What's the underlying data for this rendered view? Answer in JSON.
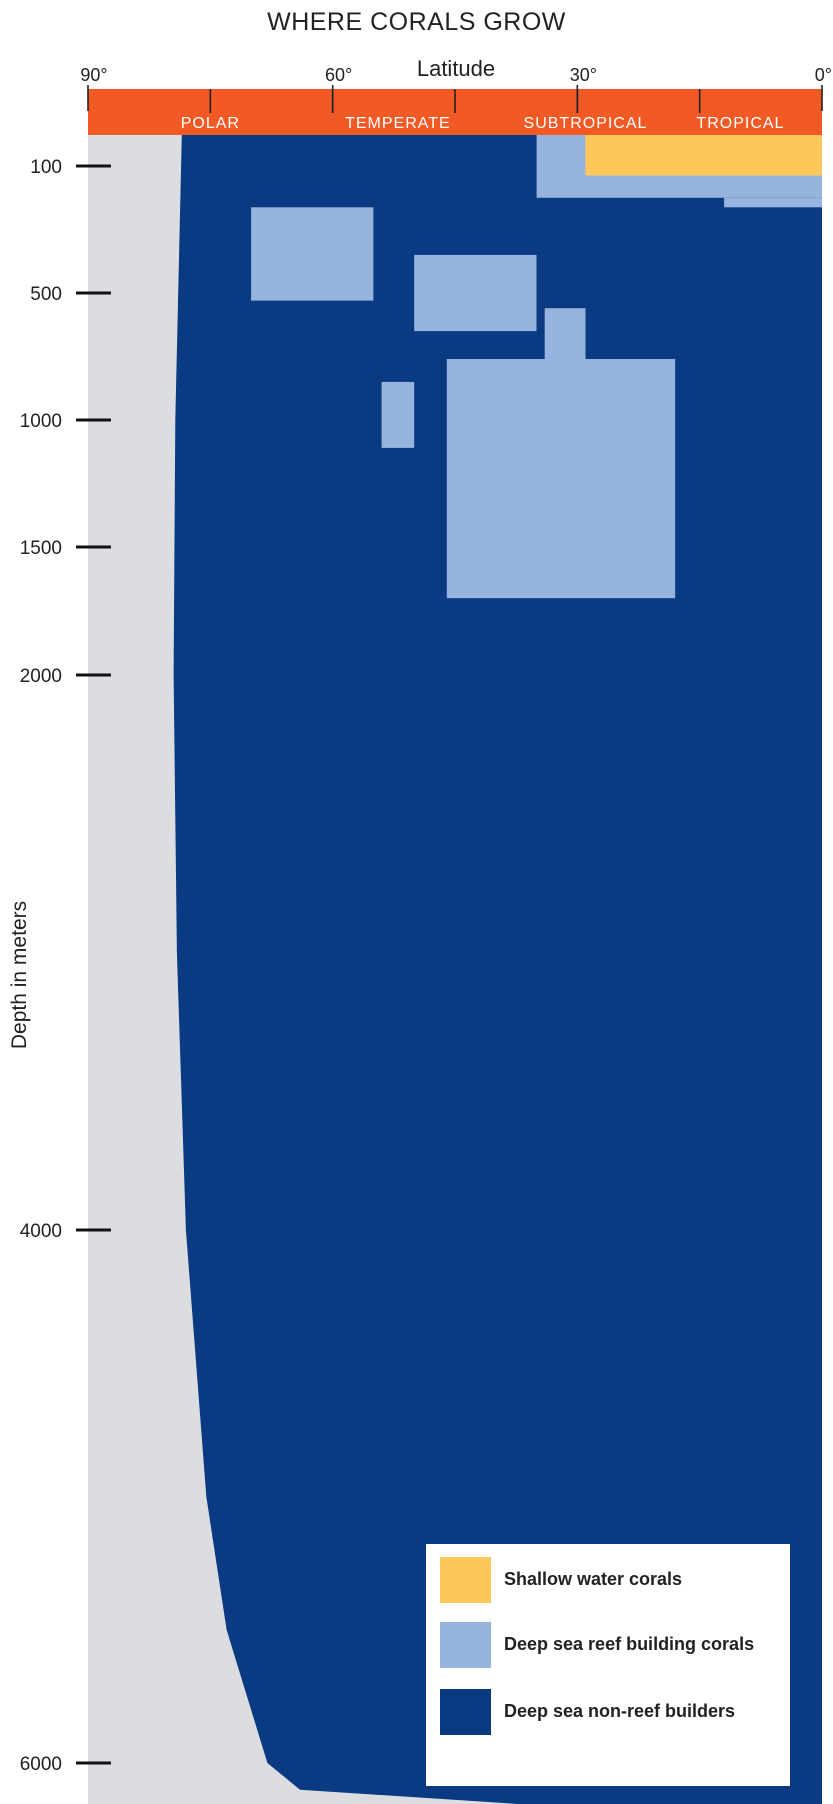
{
  "chart_data": {
    "type": "area",
    "title": "WHERE CORALS GROW",
    "xlabel": "Latitude",
    "ylabel": "Depth in meters",
    "x_ticks": [
      {
        "value": 90,
        "label": "90°"
      },
      {
        "value": 60,
        "label": "60°"
      },
      {
        "value": 30,
        "label": "30°"
      },
      {
        "value": 0,
        "label": "0°"
      }
    ],
    "y_ticks": [
      {
        "value": 100,
        "label": "100"
      },
      {
        "value": 500,
        "label": "500"
      },
      {
        "value": 1000,
        "label": "1000"
      },
      {
        "value": 1500,
        "label": "1500"
      },
      {
        "value": 2000,
        "label": "2000"
      },
      {
        "value": 4000,
        "label": "4000"
      },
      {
        "value": 6000,
        "label": "6000"
      }
    ],
    "zones": [
      {
        "label": "POLAR",
        "lat_from": 90,
        "lat_to": 60
      },
      {
        "label": "TEMPERATE",
        "lat_from": 60,
        "lat_to": 45
      },
      {
        "label": "SUBTROPICAL",
        "lat_from": 45,
        "lat_to": 15
      },
      {
        "label": "TROPICAL",
        "lat_from": 15,
        "lat_to": 0
      }
    ],
    "series": [
      {
        "name": "Shallow water corals",
        "color": "#fdc75a",
        "regions": [
          {
            "lat_from": 29,
            "lat_to": 0,
            "depth_from": 0,
            "depth_to": 130
          }
        ]
      },
      {
        "name": "Deep sea reef building corals",
        "color": "#96b4de",
        "regions": [
          {
            "lat_from": 35,
            "lat_to": 0,
            "depth_from": 0,
            "depth_to": 200
          },
          {
            "lat_from": 12,
            "lat_to": 0,
            "depth_from": 200,
            "depth_to": 230
          },
          {
            "lat_from": 70,
            "lat_to": 55,
            "depth_from": 230,
            "depth_to": 530
          },
          {
            "lat_from": 50,
            "lat_to": 35,
            "depth_from": 380,
            "depth_to": 650
          },
          {
            "lat_from": 34,
            "lat_to": 29,
            "depth_from": 560,
            "depth_to": 770
          },
          {
            "lat_from": 46,
            "lat_to": 18,
            "depth_from": 760,
            "depth_to": 1700
          },
          {
            "lat_from": 54,
            "lat_to": 50,
            "depth_from": 850,
            "depth_to": 1110
          }
        ]
      },
      {
        "name": "Deep sea non-reef builders",
        "color": "#0a3a82",
        "boundary": [
          {
            "depth": 0,
            "lat": 78.5
          },
          {
            "depth": 1000,
            "lat": 79.3
          },
          {
            "depth": 2000,
            "lat": 79.5
          },
          {
            "depth": 3000,
            "lat": 79.1
          },
          {
            "depth": 4000,
            "lat": 78.0
          },
          {
            "depth": 5000,
            "lat": 75.5
          },
          {
            "depth": 5500,
            "lat": 73.0
          },
          {
            "depth": 6000,
            "lat": 68.0
          },
          {
            "depth": 6100,
            "lat": 64.0
          }
        ]
      }
    ],
    "colors": {
      "header_bar": "#f15a24",
      "land": "#dcdde0",
      "background": "#ffffff"
    },
    "legend_position": "bottom-right",
    "grid": false
  }
}
